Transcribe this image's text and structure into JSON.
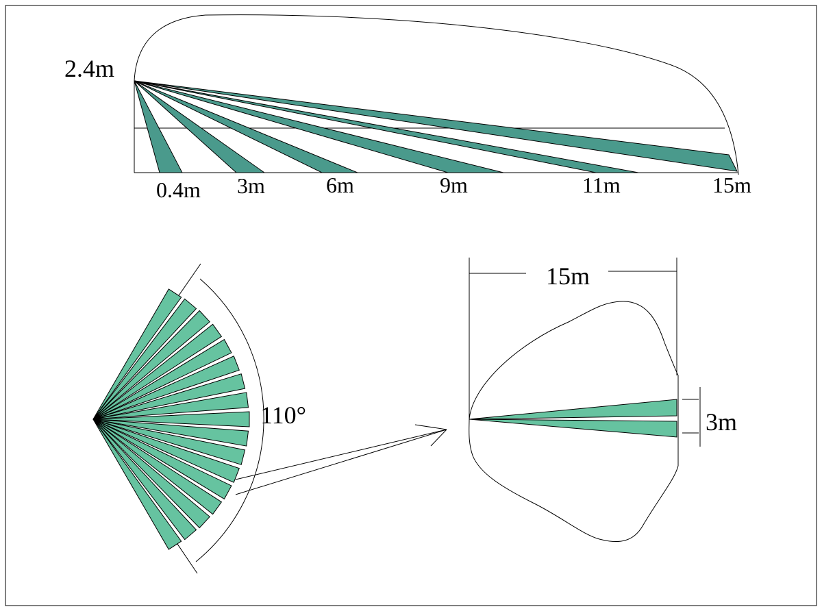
{
  "side_view": {
    "mount_height_label": "2.4m",
    "distance_labels": [
      "0.4m",
      "3m",
      "6m",
      "9m",
      "11m",
      "15m"
    ],
    "zone_color": "#4a9a8c"
  },
  "top_view": {
    "angle_label": "110°",
    "zone_color": "#66c3a0",
    "zone_count": 17
  },
  "detail_view": {
    "range_label": "15m",
    "width_label": "3m",
    "zone_color": "#66c3a0"
  }
}
